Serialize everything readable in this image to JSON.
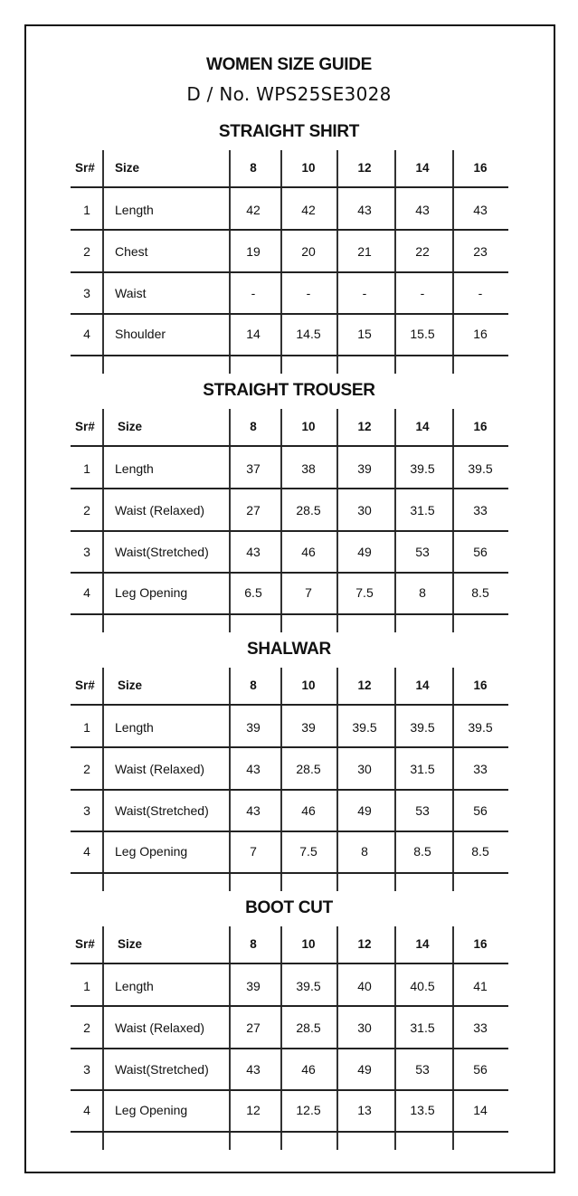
{
  "title": "WOMEN SIZE GUIDE",
  "design_no": "D / No. WPS25SE3028",
  "column_headers": {
    "sr": "Sr#",
    "size": "Size",
    "sizes": [
      "8",
      "10",
      "12",
      "14",
      "16"
    ]
  },
  "sections": [
    {
      "title": "STRAIGHT SHIRT",
      "rows": [
        {
          "sr": "1",
          "label": "Length",
          "values": [
            "42",
            "42",
            "43",
            "43",
            "43"
          ]
        },
        {
          "sr": "2",
          "label": "Chest",
          "values": [
            "19",
            "20",
            "21",
            "22",
            "23"
          ]
        },
        {
          "sr": "3",
          "label": "Waist",
          "values": [
            "-",
            "-",
            "-",
            "-",
            "-"
          ]
        },
        {
          "sr": "4",
          "label": "Shoulder",
          "values": [
            "14",
            "14.5",
            "15",
            "15.5",
            "16"
          ]
        }
      ]
    },
    {
      "title": "STRAIGHT TROUSER",
      "rows": [
        {
          "sr": "1",
          "label": "Length",
          "values": [
            "37",
            "38",
            "39",
            "39.5",
            "39.5"
          ]
        },
        {
          "sr": "2",
          "label": "Waist (Relaxed)",
          "values": [
            "27",
            "28.5",
            "30",
            "31.5",
            "33"
          ]
        },
        {
          "sr": "3",
          "label": "Waist(Stretched)",
          "values": [
            "43",
            "46",
            "49",
            "53",
            "56"
          ]
        },
        {
          "sr": "4",
          "label": "Leg Opening",
          "values": [
            "6.5",
            "7",
            "7.5",
            "8",
            "8.5"
          ]
        }
      ]
    },
    {
      "title": "SHALWAR",
      "rows": [
        {
          "sr": "1",
          "label": "Length",
          "values": [
            "39",
            "39",
            "39.5",
            "39.5",
            "39.5"
          ]
        },
        {
          "sr": "2",
          "label": "Waist (Relaxed)",
          "values": [
            "43",
            "28.5",
            "30",
            "31.5",
            "33"
          ]
        },
        {
          "sr": "3",
          "label": "Waist(Stretched)",
          "values": [
            "43",
            "46",
            "49",
            "53",
            "56"
          ]
        },
        {
          "sr": "4",
          "label": "Leg Opening",
          "values": [
            "7",
            "7.5",
            "8",
            "8.5",
            "8.5"
          ]
        }
      ]
    },
    {
      "title": "BOOT CUT",
      "rows": [
        {
          "sr": "1",
          "label": "Length",
          "values": [
            "39",
            "39.5",
            "40",
            "40.5",
            "41"
          ]
        },
        {
          "sr": "2",
          "label": "Waist (Relaxed)",
          "values": [
            "27",
            "28.5",
            "30",
            "31.5",
            "33"
          ]
        },
        {
          "sr": "3",
          "label": "Waist(Stretched)",
          "values": [
            "43",
            "46",
            "49",
            "53",
            "56"
          ]
        },
        {
          "sr": "4",
          "label": "Leg Opening",
          "values": [
            "12",
            "12.5",
            "13",
            "13.5",
            "14"
          ]
        }
      ]
    }
  ]
}
